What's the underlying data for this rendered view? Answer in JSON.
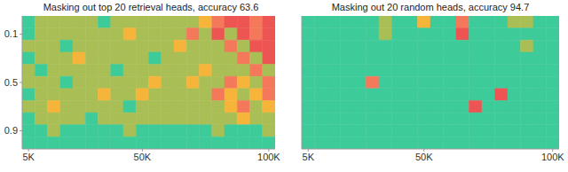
{
  "chart_data": [
    {
      "type": "heatmap",
      "title": "Masking out top 20 retrieval heads, accuracy 63.6",
      "x": [
        5000,
        10000,
        15000,
        20000,
        25000,
        30000,
        35000,
        40000,
        45000,
        50000,
        55000,
        60000,
        65000,
        70000,
        75000,
        80000,
        85000,
        90000,
        95000,
        100000
      ],
      "y": [
        0,
        0.1,
        0.2,
        0.3,
        0.4,
        0.5,
        0.6,
        0.7,
        0.8,
        0.9,
        1
      ],
      "xlim": [
        2500,
        102500
      ],
      "ylim": [
        -0.05,
        1.05
      ],
      "xticks": [
        {
          "value": 5000,
          "label": "5K"
        },
        {
          "value": 50000,
          "label": "50K"
        },
        {
          "value": 100000,
          "label": "100K"
        }
      ],
      "yticks": [
        0.1,
        0.5,
        0.9
      ],
      "color_range": [
        0,
        10
      ],
      "cells": [
        [
          10,
          7,
          7,
          7,
          7,
          7,
          10,
          7,
          7,
          7,
          7,
          7,
          7,
          7,
          5,
          3,
          1,
          1,
          3,
          1
        ],
        [
          10,
          7,
          7,
          7,
          7,
          7,
          7,
          7,
          5,
          7,
          7,
          7,
          7,
          3,
          7,
          1,
          7,
          1,
          3,
          1
        ],
        [
          7,
          7,
          7,
          10,
          7,
          7,
          7,
          7,
          7,
          7,
          7,
          7,
          5,
          7,
          7,
          7,
          3,
          7,
          1,
          1
        ],
        [
          10,
          7,
          7,
          7,
          5,
          7,
          7,
          7,
          7,
          7,
          10,
          7,
          7,
          7,
          7,
          7,
          7,
          3,
          7,
          1
        ],
        [
          7,
          10,
          7,
          7,
          7,
          7,
          7,
          10,
          7,
          7,
          7,
          7,
          7,
          7,
          5,
          7,
          7,
          7,
          3,
          7
        ],
        [
          7,
          7,
          7,
          10,
          7,
          7,
          7,
          7,
          7,
          7,
          5,
          7,
          7,
          5,
          7,
          7,
          3,
          5,
          7,
          3
        ],
        [
          10,
          7,
          7,
          7,
          7,
          7,
          5,
          7,
          7,
          5,
          7,
          7,
          7,
          7,
          7,
          3,
          5,
          7,
          5,
          3
        ],
        [
          7,
          7,
          5,
          7,
          7,
          7,
          7,
          7,
          10,
          7,
          7,
          7,
          7,
          7,
          7,
          7,
          5,
          3,
          7,
          5
        ],
        [
          10,
          7,
          7,
          7,
          7,
          10,
          7,
          7,
          7,
          7,
          7,
          7,
          7,
          7,
          7,
          7,
          7,
          5,
          7,
          7
        ],
        [
          10,
          10,
          7,
          10,
          10,
          10,
          10,
          10,
          7,
          10,
          10,
          10,
          10,
          10,
          10,
          7,
          10,
          10,
          10,
          7
        ],
        [
          10,
          10,
          10,
          10,
          10,
          10,
          10,
          10,
          10,
          10,
          10,
          10,
          10,
          10,
          10,
          10,
          10,
          10,
          10,
          10
        ]
      ]
    },
    {
      "type": "heatmap",
      "title": "Masking out 20 random heads, accuracy 94.7",
      "x": [
        5000,
        10000,
        15000,
        20000,
        25000,
        30000,
        35000,
        40000,
        45000,
        50000,
        55000,
        60000,
        65000,
        70000,
        75000,
        80000,
        85000,
        90000,
        95000,
        100000
      ],
      "y": [
        0,
        0.1,
        0.2,
        0.3,
        0.4,
        0.5,
        0.6,
        0.7,
        0.8,
        0.9,
        1
      ],
      "xlim": [
        2500,
        102500
      ],
      "ylim": [
        -0.05,
        1.05
      ],
      "xticks": [
        {
          "value": 5000,
          "label": "5K"
        },
        {
          "value": 50000,
          "label": "50K"
        },
        {
          "value": 100000,
          "label": "100K"
        }
      ],
      "yticks": [
        0.1,
        0.5,
        0.9
      ],
      "tick_labels": "x",
      "color_range": [
        0,
        10
      ],
      "cells": [
        [
          10,
          10,
          10,
          10,
          10,
          10,
          7,
          10,
          10,
          5,
          10,
          10,
          3,
          10,
          10,
          10,
          7,
          7,
          10,
          10
        ],
        [
          10,
          10,
          10,
          10,
          10,
          10,
          7,
          10,
          10,
          10,
          10,
          10,
          1,
          10,
          10,
          10,
          10,
          10,
          10,
          10
        ],
        [
          10,
          10,
          10,
          10,
          10,
          10,
          10,
          10,
          10,
          10,
          10,
          10,
          10,
          10,
          10,
          10,
          10,
          7,
          10,
          10
        ],
        [
          10,
          10,
          10,
          10,
          10,
          10,
          10,
          10,
          10,
          10,
          10,
          10,
          10,
          10,
          10,
          10,
          10,
          10,
          10,
          10
        ],
        [
          10,
          10,
          10,
          10,
          10,
          10,
          10,
          10,
          10,
          10,
          10,
          10,
          10,
          10,
          10,
          10,
          10,
          10,
          10,
          10
        ],
        [
          10,
          10,
          10,
          10,
          10,
          3,
          10,
          10,
          10,
          10,
          10,
          10,
          10,
          10,
          10,
          10,
          10,
          10,
          10,
          10
        ],
        [
          10,
          10,
          10,
          10,
          10,
          10,
          10,
          10,
          10,
          10,
          10,
          10,
          10,
          10,
          10,
          1,
          10,
          10,
          10,
          10
        ],
        [
          10,
          10,
          10,
          10,
          10,
          10,
          10,
          10,
          10,
          10,
          10,
          10,
          10,
          1,
          10,
          10,
          10,
          10,
          10,
          10
        ],
        [
          10,
          10,
          10,
          10,
          10,
          10,
          10,
          10,
          10,
          10,
          10,
          10,
          10,
          10,
          10,
          10,
          10,
          10,
          10,
          10
        ],
        [
          10,
          10,
          10,
          10,
          10,
          10,
          10,
          10,
          10,
          10,
          10,
          10,
          10,
          10,
          10,
          10,
          10,
          10,
          10,
          10
        ],
        [
          10,
          10,
          10,
          10,
          10,
          10,
          10,
          10,
          10,
          10,
          10,
          10,
          10,
          10,
          10,
          10,
          10,
          10,
          10,
          10
        ]
      ]
    }
  ]
}
